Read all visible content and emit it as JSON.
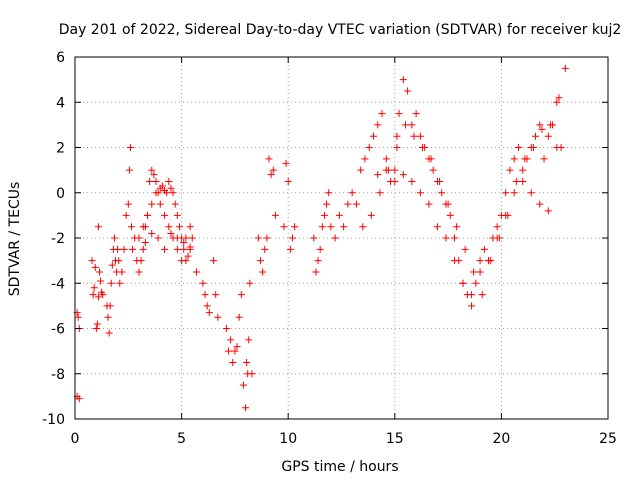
{
  "chart_data": {
    "type": "scatter",
    "title": "Day 201 of 2022, Sidereal Day-to-day VTEC variation (SDTVAR) for receiver kuj2",
    "xlabel": "GPS time / hours",
    "ylabel": "SDTVAR / TECUs",
    "xlim": [
      0,
      25
    ],
    "ylim": [
      -10,
      6
    ],
    "xticks": [
      0,
      5,
      10,
      15,
      20,
      25
    ],
    "yticks": [
      -10,
      -8,
      -6,
      -4,
      -2,
      0,
      2,
      4,
      6
    ],
    "xtick_labels": [
      "0",
      "5",
      "10",
      "15",
      "20",
      "25"
    ],
    "ytick_labels": [
      "-10",
      "-8",
      "-6",
      "-4",
      "-2",
      "0",
      "2",
      "4",
      "6"
    ],
    "grid": true,
    "marker": "+",
    "color": "#ff0000",
    "series": [
      {
        "name": "SDTVAR",
        "x": [
          0.1,
          0.1,
          0.15,
          0.2,
          0.2,
          0.8,
          0.85,
          0.9,
          0.95,
          1.0,
          1.05,
          1.1,
          1.1,
          1.15,
          1.2,
          1.25,
          1.3,
          1.5,
          1.55,
          1.6,
          1.65,
          1.7,
          1.75,
          1.8,
          1.85,
          1.9,
          1.95,
          2.0,
          2.05,
          2.1,
          2.2,
          2.3,
          2.4,
          2.5,
          2.55,
          2.6,
          2.65,
          2.7,
          2.8,
          2.9,
          3.0,
          3.1,
          3.2,
          3.3,
          3.4,
          3.5,
          3.6,
          3.7,
          3.8,
          3.9,
          4.0,
          4.1,
          4.2,
          4.3,
          4.4,
          4.5,
          4.6,
          4.7,
          4.8,
          4.9,
          5.0,
          5.1,
          5.2,
          5.3,
          5.4,
          5.5,
          3.2,
          3.4,
          3.6,
          3.8,
          4.0,
          4.2,
          4.4,
          4.6,
          4.8,
          5.0,
          5.2,
          5.4,
          3.0,
          3.3,
          3.6,
          3.9,
          4.2,
          4.5,
          4.8,
          5.1,
          5.4,
          5.7,
          6.0,
          6.1,
          6.2,
          6.3,
          6.5,
          6.6,
          6.7,
          7.1,
          7.2,
          7.3,
          7.4,
          7.5,
          7.6,
          7.7,
          7.8,
          7.9,
          8.0,
          8.05,
          8.1,
          8.15,
          8.2,
          8.3,
          8.6,
          8.7,
          8.8,
          8.9,
          9.0,
          9.1,
          9.2,
          9.3,
          9.4,
          9.8,
          9.9,
          10.0,
          10.1,
          10.2,
          10.3,
          11.2,
          11.3,
          11.4,
          11.5,
          11.6,
          11.7,
          11.8,
          11.9,
          12.0,
          12.2,
          12.4,
          12.6,
          12.8,
          13.0,
          13.2,
          13.4,
          13.6,
          13.8,
          14.0,
          14.2,
          14.4,
          14.6,
          14.8,
          15.0,
          15.1,
          15.2,
          15.4,
          15.6,
          15.8,
          16.0,
          16.2,
          16.4,
          16.6,
          16.8,
          17.0,
          17.2,
          17.4,
          17.6,
          17.8,
          18.0,
          18.2,
          18.4,
          18.6,
          18.8,
          19.0,
          19.2,
          19.4,
          19.6,
          19.8,
          20.0,
          20.2,
          20.4,
          20.6,
          20.8,
          21.0,
          21.2,
          21.4,
          21.6,
          21.8,
          22.0,
          22.2,
          22.4,
          22.6,
          22.8,
          23.0,
          14.2,
          14.6,
          15.0,
          15.4,
          15.8,
          16.2,
          16.6,
          17.0,
          17.4,
          17.8,
          18.2,
          18.6,
          19.0,
          19.4,
          19.8,
          20.2,
          20.6,
          21.0,
          21.4,
          21.8,
          22.2,
          22.6,
          13.5,
          13.9,
          14.3,
          14.7,
          15.1,
          15.5,
          15.9,
          16.3,
          16.7,
          17.1,
          17.5,
          17.9,
          18.3,
          18.7,
          19.1,
          19.5,
          19.9,
          20.3,
          20.7,
          21.1,
          21.5,
          21.9,
          22.3,
          22.7
        ],
        "y": [
          -9.0,
          -5.3,
          -5.5,
          -6.0,
          -9.1,
          -3.0,
          -4.5,
          -4.2,
          -3.3,
          -6.0,
          -5.8,
          -4.6,
          -1.5,
          -3.5,
          -3.9,
          -4.4,
          -4.5,
          -5.0,
          -5.5,
          -6.2,
          -5.0,
          -4.0,
          -3.2,
          -2.5,
          -2.0,
          -3.0,
          -3.5,
          -2.5,
          -3.0,
          -4.0,
          -3.5,
          -2.5,
          -1.0,
          -0.5,
          1.0,
          2.0,
          -1.5,
          -2.5,
          -2.0,
          -3.0,
          -3.5,
          -3.0,
          -2.5,
          -1.5,
          -1.0,
          0.5,
          1.0,
          0.8,
          0.5,
          0.0,
          0.2,
          0.3,
          0.1,
          0.0,
          0.5,
          0.2,
          0.0,
          -0.5,
          -1.0,
          -1.5,
          -2.0,
          -2.5,
          -3.0,
          -2.8,
          -2.5,
          -2.0,
          -1.5,
          -1.0,
          -0.5,
          0.0,
          -0.5,
          -1.0,
          -1.5,
          -2.0,
          -2.5,
          -3.0,
          -2.0,
          -1.5,
          -2.0,
          -2.2,
          -1.8,
          -2.0,
          -2.5,
          -1.8,
          -2.0,
          -2.2,
          -2.4,
          -3.5,
          -4.0,
          -4.5,
          -5.0,
          -5.3,
          -3.0,
          -4.5,
          -5.5,
          -6.0,
          -7.0,
          -6.5,
          -7.5,
          -7.0,
          -6.8,
          -5.5,
          -4.5,
          -8.5,
          -9.5,
          -7.5,
          -8.0,
          -6.5,
          -4.0,
          -8.0,
          -2.0,
          -3.0,
          -3.5,
          -2.5,
          -2.0,
          1.5,
          0.8,
          1.0,
          -1.0,
          -1.5,
          1.3,
          0.5,
          -2.5,
          -2.0,
          -1.5,
          -2.0,
          -3.5,
          -3.0,
          -2.5,
          -1.5,
          -1.0,
          -0.5,
          0.0,
          -1.5,
          -2.0,
          -1.0,
          -1.5,
          -0.5,
          0.0,
          -0.5,
          1.0,
          1.5,
          2.0,
          2.5,
          3.0,
          3.5,
          1.5,
          0.5,
          1.0,
          2.0,
          3.5,
          5.0,
          4.5,
          3.0,
          3.5,
          2.5,
          2.0,
          1.5,
          1.0,
          0.5,
          0.0,
          -0.5,
          -1.0,
          -2.0,
          -3.0,
          -4.0,
          -4.5,
          -5.0,
          -4.0,
          -3.0,
          -2.5,
          -3.0,
          -2.0,
          -1.5,
          -1.0,
          0.0,
          1.0,
          1.5,
          2.0,
          1.0,
          1.5,
          2.0,
          2.5,
          3.0,
          1.5,
          2.5,
          3.0,
          4.0,
          2.0,
          5.5,
          0.8,
          1.0,
          0.5,
          0.8,
          0.5,
          0.0,
          -0.5,
          -1.5,
          -2.0,
          -3.0,
          -4.0,
          -4.5,
          -3.5,
          -3.0,
          -2.0,
          -1.0,
          0.0,
          0.5,
          0.0,
          -0.5,
          -0.8,
          2.0,
          -1.5,
          -1.0,
          0.0,
          1.0,
          2.5,
          3.0,
          2.5,
          2.0,
          1.5,
          0.5,
          -0.5,
          -1.5,
          -2.5,
          -3.5,
          -4.5,
          -3.0,
          -2.0,
          -1.0,
          0.5,
          1.5,
          2.0,
          2.8,
          3.0,
          4.2
        ]
      }
    ]
  }
}
